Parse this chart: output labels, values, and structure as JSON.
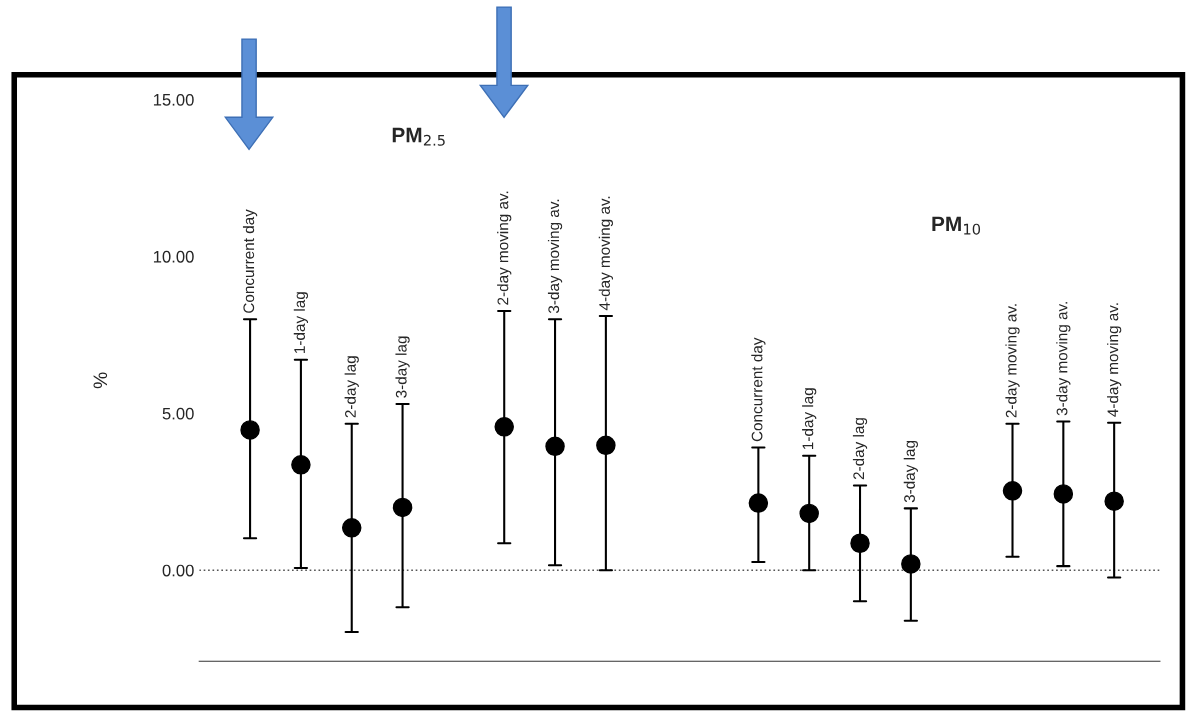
{
  "chart_data": {
    "type": "scatter",
    "ylabel": "%",
    "categories": [
      "Concurrent day",
      "1-day lag",
      "2-day lag",
      "3-day lag",
      null,
      "2-day moving av.",
      "3-day moving av.",
      "4-day moving av.",
      null,
      null,
      "Concurrent day",
      "1-day lag",
      "2-day lag",
      "3-day lag",
      null,
      "2-day moving av.",
      "3-day moving av.",
      "4-day moving av."
    ],
    "series": [
      {
        "color": "#000000",
        "values": [
          4.47,
          3.36,
          1.35,
          2.0,
          null,
          4.57,
          3.95,
          3.98,
          null,
          null,
          2.14,
          1.81,
          0.86,
          0.2,
          null,
          2.53,
          2.43,
          2.2
        ],
        "errors": [
          [
            1.02,
            8.0
          ],
          [
            0.07,
            6.71
          ],
          [
            -1.97,
            4.67
          ],
          [
            -1.18,
            5.3
          ],
          null,
          [
            0.86,
            8.26
          ],
          [
            0.16,
            8.0
          ],
          [
            0.0,
            8.1
          ],
          null,
          null,
          [
            0.26,
            3.91
          ],
          [
            0.0,
            3.65
          ],
          [
            -0.99,
            2.7
          ],
          [
            -1.61,
            1.97
          ],
          null,
          [
            0.43,
            4.67
          ],
          [
            0.13,
            4.74
          ],
          [
            -0.23,
            4.7
          ]
        ]
      }
    ],
    "ylim": [
      -2.9,
      15
    ],
    "yticks": [
      {
        "value": 0,
        "label": "0.00"
      },
      {
        "value": 5,
        "label": "5.00"
      },
      {
        "value": 10,
        "label": "10.00"
      },
      {
        "value": 15,
        "label": "15.00"
      }
    ],
    "ref_lines": [
      {
        "axis": "y",
        "value": 0,
        "line_style": "dotted",
        "color": "#555555"
      }
    ],
    "annotations": [
      "PM$_{2.5}$",
      "PM$_{10}$"
    ],
    "marker": "circle",
    "grid": false,
    "legend": false
  }
}
